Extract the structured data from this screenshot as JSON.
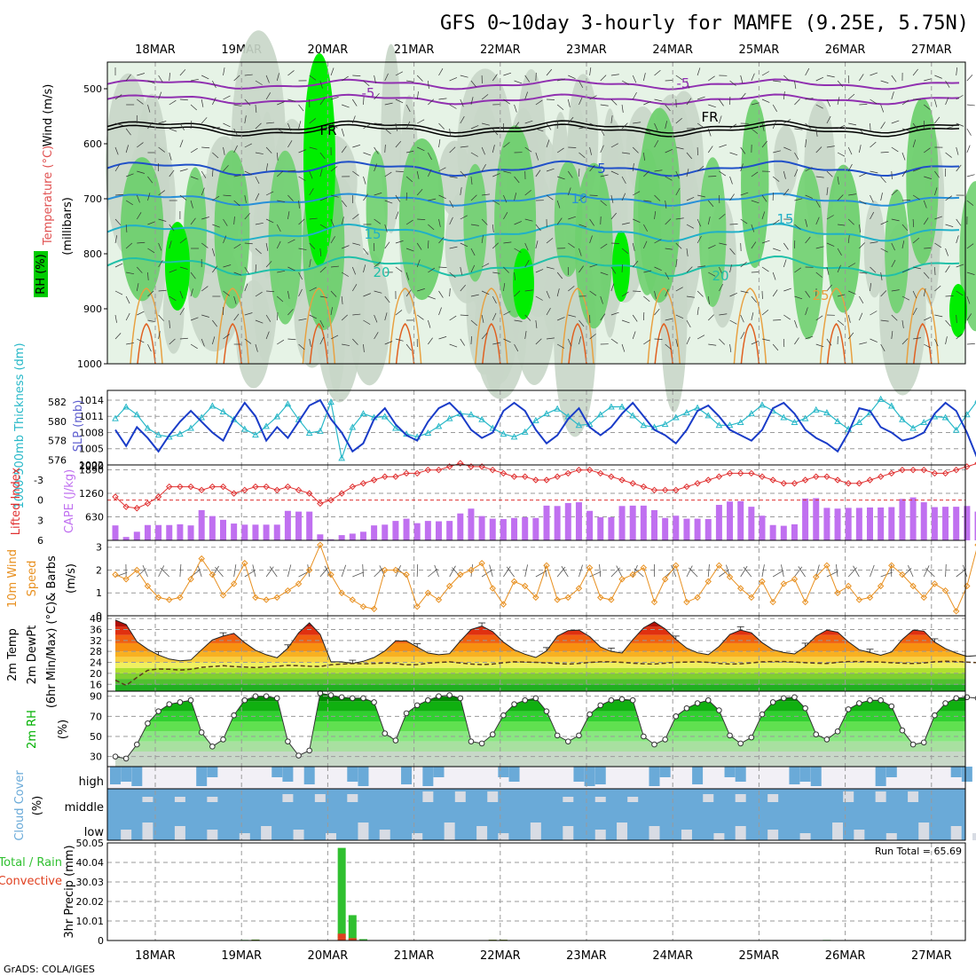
{
  "title": "GFS 0~10day 3-hourly for MAMFE (9.25E, 5.75N)",
  "footer": "GrADS: COLA/IGES",
  "dates": [
    "18MAR",
    "19MAR",
    "20MAR",
    "21MAR",
    "22MAR",
    "23MAR",
    "24MAR",
    "25MAR",
    "26MAR",
    "27MAR"
  ],
  "colors": {
    "rh_light": "#e6f3e6",
    "rh_mid": "#c8d6c8",
    "rh_green": "#6fd06f",
    "rh_bright": "#00ee00",
    "slp": "#1a3cc8",
    "thickness": "#28b8c8",
    "lifted_index": "#e03030",
    "cape": "#c070f0",
    "wind": "#e89020",
    "rh2m": "#00b000",
    "cloud": "#6aaad8",
    "precip_total": "#30c030",
    "precip_conv": "#e04020"
  },
  "chart_data": [
    {
      "panel": "upper_air",
      "type": "heatmap",
      "ylabel_parts": [
        "Wind (m/s)",
        "Temperature (°C)",
        "RH (%)",
        "(millibars)"
      ],
      "yticks": [
        "500",
        "600",
        "700",
        "800",
        "900",
        "1000"
      ],
      "contour_labels": [
        "-5",
        "-5",
        "FR",
        "FR",
        "5",
        "10",
        "15",
        "15",
        "20",
        "20",
        "25"
      ],
      "rh_legend": "RH (%)"
    },
    {
      "panel": "slp_thickness",
      "type": "line",
      "ylabel_left": "1000-500mb Thickness (dm)",
      "ylabel_right": "SLP (mb)",
      "yticks_left": [
        "582",
        "580",
        "578",
        "576"
      ],
      "yticks_right": [
        "1014",
        "1011",
        "1008",
        "1005",
        "1002"
      ],
      "series": [
        {
          "name": "SLP (mb)",
          "axis": "right",
          "values": [
            1008.5,
            1005.5,
            1009,
            1007,
            1004.5,
            1007.5,
            1010,
            1012,
            1010,
            1008,
            1006.5,
            1010.5,
            1013.5,
            1011,
            1006.5,
            1009,
            1007,
            1010,
            1013,
            1014,
            1010.5,
            1008,
            1004.5,
            1006,
            1010.5,
            1012.5,
            1009.5,
            1007.5,
            1006.5,
            1010,
            1012.5,
            1013.5,
            1011.5,
            1008.5,
            1007,
            1008,
            1012,
            1013.5,
            1012,
            1008.5,
            1006,
            1007.5,
            1010.5,
            1012.5,
            1009,
            1007.5,
            1009,
            1011.5,
            1013.5,
            1011,
            1008.5,
            1007.5,
            1006,
            1008.5,
            1012,
            1013,
            1011,
            1008.5,
            1007.5,
            1006.5,
            1008.5,
            1012.5,
            1013.5,
            1011.5,
            1008.5,
            1007,
            1006,
            1004.5,
            1008,
            1012.5,
            1012,
            1009,
            1008,
            1006.5,
            1007,
            1008,
            1011.5,
            1013.5,
            1012,
            1008,
            1003,
            1005.5,
            1009,
            1007.5,
            1006.5,
            1006.5
          ]
        },
        {
          "name": "1000-500mb Thickness (dm)",
          "axis": "left",
          "values": [
            580.3,
            581.5,
            580.7,
            579.3,
            578.6,
            578.4,
            578.7,
            579.3,
            580.4,
            581.6,
            581,
            580.2,
            579.2,
            578.6,
            579.5,
            580.5,
            581.8,
            580.2,
            578.8,
            579,
            582,
            576.2,
            579.4,
            580.8,
            580.4,
            580.5,
            579.3,
            578.7,
            578.4,
            578.8,
            579.5,
            580.3,
            580.8,
            580.7,
            580.2,
            579.3,
            578.7,
            578.4,
            578.9,
            580.1,
            580.8,
            581.3,
            580.5,
            579.6,
            579.7,
            580.7,
            581.5,
            581.5,
            580.6,
            579.6,
            579.4,
            579.7,
            580.4,
            580.9,
            581.4,
            580.6,
            579.6,
            579.6,
            579.9,
            580.8,
            581.7,
            581.1,
            580.4,
            579.9,
            580.3,
            581.2,
            580.9,
            580,
            579.2,
            579.9,
            580.9,
            582.3,
            581.6,
            580.2,
            579.3,
            579.9,
            580.5,
            580.4,
            579.1,
            580.7,
            582.2,
            581.1,
            579.6,
            579.3,
            579.1,
            579.2
          ]
        }
      ]
    },
    {
      "panel": "lifted_cape",
      "type": "bar",
      "ylabel_left": "Lifted Index",
      "ylabel_right": "CAPE (J/kg)",
      "yticks_left": [
        "-3",
        "0",
        "3",
        "6"
      ],
      "yticks_right": [
        "1890",
        "1260",
        "630"
      ],
      "series": [
        {
          "name": "CAPE (J/kg)",
          "axis": "right",
          "values": [
            400,
            90,
            230,
            410,
            410,
            410,
            430,
            400,
            810,
            650,
            550,
            450,
            420,
            420,
            420,
            420,
            790,
            770,
            770,
            160,
            30,
            140,
            180,
            230,
            400,
            420,
            520,
            580,
            460,
            520,
            510,
            520,
            720,
            850,
            650,
            580,
            570,
            600,
            620,
            600,
            930,
            920,
            1000,
            1020,
            790,
            620,
            620,
            920,
            930,
            930,
            810,
            600,
            660,
            580,
            580,
            570,
            950,
            1040,
            1050,
            900,
            660,
            410,
            390,
            430,
            1120,
            1130,
            870,
            850,
            870,
            870,
            880,
            880,
            890,
            1110,
            1150,
            1020,
            890,
            900,
            900,
            920,
            770,
            590,
            600,
            590,
            600,
            600
          ]
        },
        {
          "name": "Lifted Index",
          "axis": "left",
          "values": [
            -0.5,
            1,
            1.2,
            0.5,
            -0.5,
            -2,
            -2,
            -2,
            -1.5,
            -2,
            -2,
            -1,
            -1.5,
            -2,
            -2,
            -1.5,
            -2,
            -1.5,
            -1,
            0.5,
            0,
            -1,
            -2,
            -2.5,
            -3,
            -3.5,
            -3.5,
            -4,
            -4,
            -4.5,
            -4.5,
            -5,
            -5.5,
            -5,
            -5,
            -4.5,
            -4,
            -3.5,
            -3.5,
            -3,
            -3,
            -3.5,
            -4,
            -4.5,
            -4.5,
            -4,
            -3.5,
            -3,
            -2.5,
            -2,
            -1.5,
            -1.5,
            -1.5,
            -2,
            -2.5,
            -3,
            -3.5,
            -4,
            -4,
            -4,
            -3.5,
            -3,
            -2.5,
            -2.5,
            -3,
            -3.5,
            -3.5,
            -3,
            -2.5,
            -2.5,
            -3,
            -3.5,
            -4,
            -4.5,
            -4.5,
            -4.5,
            -4,
            -4,
            -4.5,
            -5,
            -5.5,
            -5.5,
            -5,
            -5,
            -5,
            -5.5
          ]
        }
      ]
    },
    {
      "panel": "wind10m",
      "type": "line",
      "ylabel": "10m Wind Speed & Barbs (m/s)",
      "yticks": [
        "3",
        "2",
        "1",
        "0"
      ],
      "ylim": [
        0,
        3.3
      ],
      "series": [
        {
          "name": "10m Wind Speed",
          "values": [
            1.8,
            1.6,
            2,
            1.3,
            0.8,
            0.7,
            0.8,
            1.6,
            2.5,
            1.8,
            0.9,
            1.4,
            2.3,
            0.8,
            0.7,
            0.8,
            1.1,
            1.4,
            2,
            3.1,
            1.8,
            1,
            0.7,
            0.4,
            0.3,
            2,
            2,
            1.8,
            0.4,
            1,
            0.7,
            1.3,
            1.8,
            2,
            2.3,
            1.2,
            0.5,
            1.5,
            1.3,
            0.8,
            2.2,
            0.7,
            0.8,
            1.2,
            2.1,
            0.8,
            0.7,
            1.6,
            1.8,
            2.1,
            0.6,
            1.6,
            2.2,
            0.6,
            0.8,
            1.5,
            2.2,
            1.7,
            1.2,
            0.8,
            1.5,
            0.6,
            1.4,
            1.6,
            0.6,
            1.7,
            2.2,
            1,
            1.3,
            0.7,
            0.8,
            1.3,
            2.2,
            1.8,
            1.3,
            0.8,
            1.4,
            1.1,
            0.2,
            1.3,
            3.1,
            2.8,
            2.8,
            2.3,
            1,
            0.6
          ]
        }
      ]
    },
    {
      "panel": "temp2m",
      "type": "area",
      "ylabel_parts": [
        "2m Temp",
        "2m DewPt",
        "(6hr Min/Max) (°C)"
      ],
      "yticks": [
        "40",
        "36",
        "32",
        "28",
        "24",
        "20",
        "16"
      ],
      "series": [
        {
          "name": "2m Temp",
          "values": [
            39.4,
            37.8,
            31.6,
            28.8,
            26.7,
            25.2,
            24.6,
            24.9,
            28.6,
            32.2,
            33.6,
            34.6,
            31.2,
            28.4,
            26.8,
            25.7,
            29.2,
            34.8,
            38.4,
            34.2,
            24.2,
            24.2,
            23.6,
            24.4,
            25.8,
            28.2,
            31.8,
            31.8,
            29.6,
            27.4,
            26.8,
            27.2,
            31.8,
            36,
            37.2,
            35.2,
            31.4,
            28.6,
            27,
            25.8,
            28.2,
            33.6,
            35.6,
            35.8,
            33.4,
            29.6,
            28,
            27.4,
            32.3,
            36.6,
            38.8,
            36.2,
            32.4,
            29.2,
            27.5,
            26.8,
            29.8,
            34.2,
            35.8,
            34.8,
            31.2,
            28.6,
            27.6,
            27.1,
            29.8,
            33.6,
            35.8,
            35,
            31.5,
            28.6,
            27.6,
            26.6,
            27.8,
            32.4,
            35.8,
            35.4,
            31.4,
            29,
            27.4,
            26.2,
            26.5,
            29.8,
            31.3,
            29.8,
            25.9,
            25.2
          ]
        },
        {
          "name": "2m DewPt",
          "values": [
            17.5,
            15.6,
            18.5,
            21.1,
            21.6,
            21.5,
            21.2,
            21.5,
            22.2,
            22.5,
            22.8,
            22.5,
            22.3,
            22.1,
            22.4,
            22.6,
            22.9,
            22.8,
            22.6,
            22.5,
            23.1,
            23.4,
            23.6,
            23.5,
            23.6,
            23.8,
            23.6,
            23.1,
            23.2,
            23.7,
            24,
            24.2,
            23.8,
            23.4,
            23.2,
            23.4,
            23.9,
            24.2,
            24.1,
            24,
            23.8,
            23.6,
            23.4,
            23.6,
            24,
            24.2,
            24.2,
            24,
            23.7,
            23.5,
            23.4,
            23.7,
            24,
            24.1,
            24.2,
            24,
            23.6,
            23.4,
            23.5,
            23.8,
            24.2,
            24.3,
            24.3,
            24.1,
            23.9,
            23.7,
            23.6,
            24,
            24.3,
            24.3,
            24.2,
            24.1,
            23.9,
            23.7,
            23.6,
            23.8,
            24.2,
            24.4,
            24.3,
            24.1,
            23.9,
            23.5,
            23.5,
            24.1,
            24.8,
            24.9
          ]
        }
      ]
    },
    {
      "panel": "rh2m",
      "type": "area",
      "ylabel": "2m RH (%)",
      "yticks": [
        "90",
        "70",
        "50",
        "30"
      ],
      "ylim": [
        20,
        95
      ],
      "series": [
        {
          "name": "2m RH",
          "values": [
            30,
            28,
            42,
            63,
            75,
            82,
            84,
            86,
            54,
            40,
            47,
            71,
            86,
            90,
            90,
            88,
            45,
            31,
            36,
            93,
            91,
            89,
            88,
            88,
            84,
            53,
            46,
            73,
            81,
            86,
            90,
            91,
            88,
            45,
            43,
            52,
            71,
            82,
            86,
            88,
            75,
            51,
            45,
            51,
            72,
            81,
            86,
            87,
            86,
            50,
            42,
            47,
            70,
            78,
            83,
            86,
            76,
            51,
            43,
            49,
            72,
            84,
            88,
            89,
            78,
            52,
            47,
            55,
            77,
            83,
            86,
            86,
            80,
            56,
            42,
            44,
            71,
            83,
            88,
            89,
            88,
            60,
            52,
            62,
            85,
            89
          ]
        }
      ]
    },
    {
      "panel": "cloud",
      "type": "heatmap",
      "ylabel": "Cloud Cover (%)",
      "rows": [
        "high",
        "middle",
        "low"
      ]
    },
    {
      "panel": "precip",
      "type": "bar",
      "ylabel_parts": [
        "3hr Precip (mm)",
        "Total / Rain",
        "Convective"
      ],
      "yticks": [
        "50.05",
        "40.04",
        "30.03",
        "20.02",
        "10.01",
        "0"
      ],
      "ylim": [
        0,
        50.05
      ],
      "annotation": "Run Total = 65.69",
      "series": [
        {
          "name": "Total / Rain",
          "values": [
            0,
            0,
            0,
            0,
            0,
            0,
            0,
            0,
            0,
            0,
            0,
            0,
            0.3,
            0.5,
            0,
            0,
            0,
            0,
            0,
            0,
            0,
            47.5,
            13,
            0.7,
            0,
            0,
            0,
            0,
            0,
            0,
            0,
            0,
            0,
            0,
            0,
            0.4,
            0.4,
            0.2,
            0,
            0,
            0,
            0,
            0,
            0,
            0,
            0,
            0,
            0,
            0,
            0,
            0,
            0,
            0,
            0,
            0,
            0,
            0,
            0,
            0,
            0,
            0,
            0,
            0,
            0,
            0,
            0,
            0.3,
            0.2,
            0,
            0,
            0,
            0,
            0,
            0,
            0,
            0,
            0,
            0,
            0,
            0,
            0,
            0,
            0,
            0,
            0,
            0.4
          ]
        },
        {
          "name": "Convective",
          "values": [
            0,
            0,
            0,
            0,
            0,
            0,
            0,
            0,
            0,
            0,
            0,
            0,
            0.2,
            0.3,
            0,
            0,
            0,
            0,
            0,
            0,
            0,
            3.5,
            1.2,
            0,
            0,
            0,
            0,
            0,
            0,
            0,
            0,
            0,
            0,
            0,
            0,
            0.3,
            0.3,
            0.1,
            0,
            0,
            0,
            0,
            0,
            0,
            0,
            0,
            0,
            0,
            0,
            0,
            0,
            0,
            0,
            0,
            0,
            0,
            0,
            0,
            0,
            0,
            0,
            0,
            0,
            0,
            0,
            0,
            0.2,
            0.1,
            0,
            0,
            0,
            0,
            0,
            0,
            0,
            0,
            0,
            0,
            0,
            0,
            0,
            0,
            0,
            0,
            0,
            0.2
          ]
        }
      ]
    }
  ]
}
